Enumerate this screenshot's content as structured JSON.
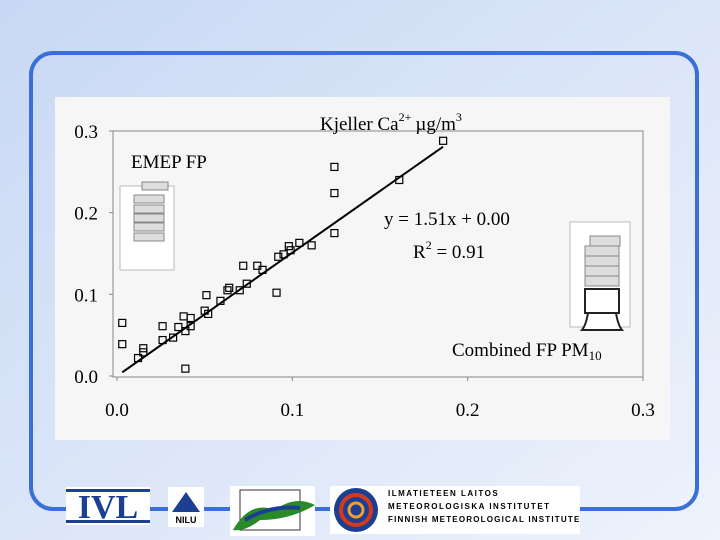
{
  "chart_data": {
    "type": "scatter",
    "title": {
      "text": "Kjeller Ca",
      "sup": "2+",
      "unit": "µg/m",
      "unit_sup": "3"
    },
    "x": [
      0.003,
      0.003,
      0.012,
      0.015,
      0.015,
      0.026,
      0.026,
      0.032,
      0.035,
      0.038,
      0.039,
      0.039,
      0.042,
      0.042,
      0.05,
      0.051,
      0.052,
      0.059,
      0.063,
      0.064,
      0.07,
      0.072,
      0.074,
      0.08,
      0.083,
      0.091,
      0.092,
      0.095,
      0.098,
      0.099,
      0.104,
      0.111,
      0.124,
      0.124,
      0.124,
      0.161,
      0.186
    ],
    "values": [
      0.065,
      0.039,
      0.022,
      0.034,
      0.029,
      0.061,
      0.044,
      0.047,
      0.06,
      0.073,
      0.055,
      0.009,
      0.071,
      0.061,
      0.08,
      0.099,
      0.076,
      0.092,
      0.105,
      0.108,
      0.105,
      0.135,
      0.113,
      0.135,
      0.13,
      0.102,
      0.146,
      0.149,
      0.159,
      0.154,
      0.163,
      0.16,
      0.256,
      0.224,
      0.175,
      0.24,
      0.288
    ],
    "color": "#000000",
    "xlim": [
      0,
      0.3
    ],
    "ylim": [
      0,
      0.3
    ],
    "xticks": [
      {
        "value": 0,
        "label": "0.0"
      },
      0.1,
      0.2,
      0.3
    ],
    "yticks": [
      {
        "value": 0,
        "label": "0.0"
      },
      0.1,
      0.2,
      0.3
    ],
    "fit": {
      "slope": 1.51,
      "intercept": 0,
      "xlim": [
        0.003,
        0.186
      ]
    },
    "equation": "y = 1.51x + 0.00",
    "r2": {
      "text": "R",
      "sup": "2",
      "rest": " = 0.91"
    },
    "emep_label": "EMEP FP",
    "combined_label": {
      "text": "Combined FP PM",
      "sub": "10"
    }
  },
  "logos": {
    "ivl": "IVL",
    "nilu": "NILU",
    "fmi": [
      "ILMATIETEEN LAITOS",
      "METEOROLOGISKA INSTITUTET",
      "FINNISH METEOROLOGICAL INSTITUTE"
    ]
  }
}
